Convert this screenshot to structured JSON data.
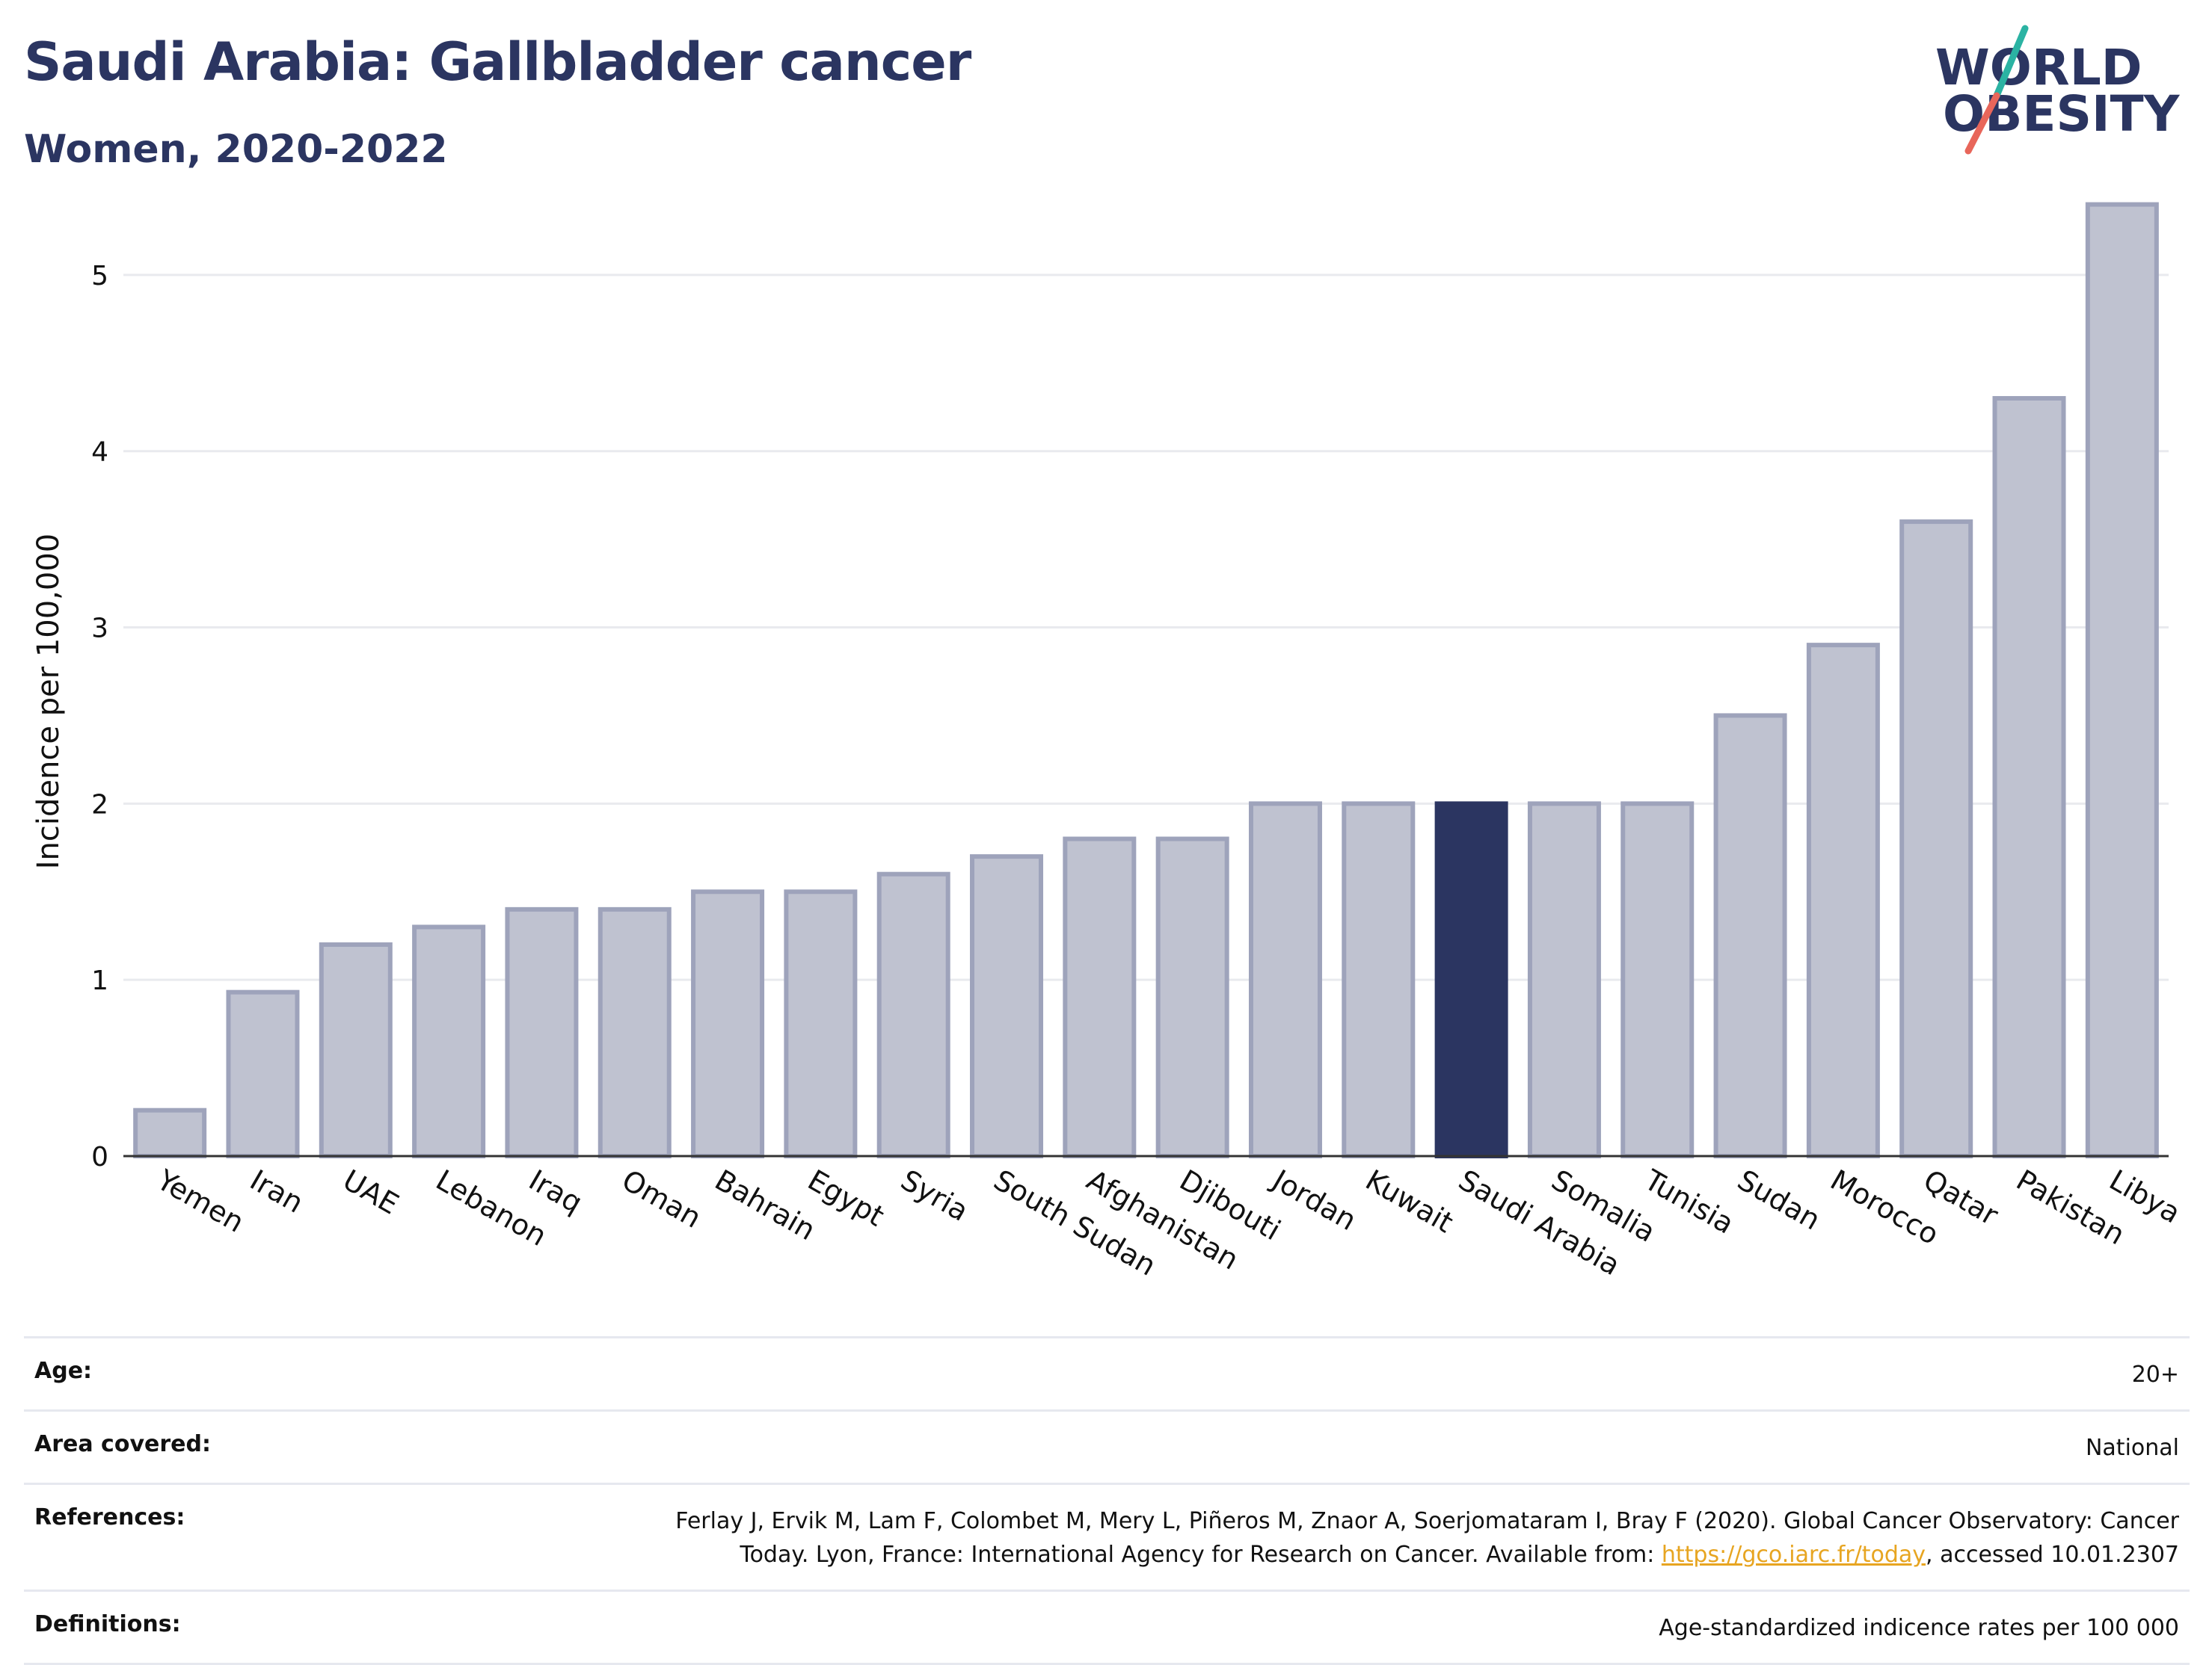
{
  "header": {
    "title": "Saudi Arabia: Gallbladder cancer",
    "subtitle": "Women, 2020-2022"
  },
  "logo": {
    "line1": "WORLD",
    "line2": "OBESITY",
    "colors": {
      "text": "#2b3561",
      "slash_top": "#2bb3a3",
      "slash_bottom": "#e8665a"
    }
  },
  "chart_data": {
    "type": "bar",
    "title": "",
    "xlabel": "",
    "ylabel": "Incidence per 100,000",
    "ylim": [
      0,
      5.5
    ],
    "yticks": [
      0,
      1,
      2,
      3,
      4,
      5
    ],
    "grid": true,
    "highlight": "Saudi Arabia",
    "colors": {
      "bar": "#bfc2d0",
      "bar_edge": "#9ea3bb",
      "highlight": "#2b3561",
      "grid": "#e9eaee",
      "axis": "#333333"
    },
    "categories": [
      "Yemen",
      "Iran",
      "UAE",
      "Lebanon",
      "Iraq",
      "Oman",
      "Bahrain",
      "Egypt",
      "Syria",
      "South Sudan",
      "Afghanistan",
      "Djibouti",
      "Jordan",
      "Kuwait",
      "Saudi Arabia",
      "Somalia",
      "Tunisia",
      "Sudan",
      "Morocco",
      "Qatar",
      "Pakistan",
      "Libya"
    ],
    "values": [
      0.26,
      0.93,
      1.2,
      1.3,
      1.4,
      1.4,
      1.5,
      1.5,
      1.6,
      1.7,
      1.8,
      1.8,
      2.0,
      2.0,
      2.0,
      2.0,
      2.0,
      2.5,
      2.9,
      3.6,
      4.3,
      5.4
    ]
  },
  "footer": {
    "age_label": "Age:",
    "age_value": "20+",
    "area_label": "Area covered:",
    "area_value": "National",
    "references_label": "References:",
    "references_text_1": "Ferlay J, Ervik M, Lam F, Colombet M, Mery L, Piñeros M, Znaor A, Soerjomataram I, Bray F (2020). Global Cancer Observatory: Cancer Today. Lyon, France: International Agency for Research on Cancer. Available from: ",
    "references_link": "https://gco.iarc.fr/today",
    "references_text_2": ", accessed 10.01.2307",
    "definitions_label": "Definitions:",
    "definitions_value": "Age-standardized indicence rates per 100 000"
  }
}
